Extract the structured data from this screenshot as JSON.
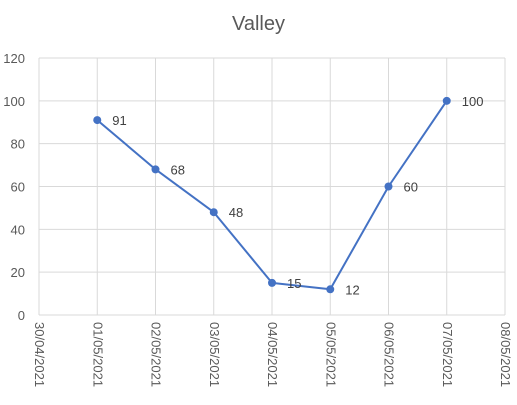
{
  "chart_data": {
    "type": "line",
    "title": "Valley",
    "xlabel": "",
    "ylabel": "",
    "x_ticks": [
      "30/04/2021",
      "01/05/2021",
      "02/05/2021",
      "03/05/2021",
      "04/05/2021",
      "05/05/2021",
      "06/05/2021",
      "07/05/2021",
      "08/05/2021"
    ],
    "x": [
      "01/05/2021",
      "02/05/2021",
      "03/05/2021",
      "04/05/2021",
      "05/05/2021",
      "06/05/2021",
      "07/05/2021"
    ],
    "values": [
      91,
      68,
      48,
      15,
      12,
      60,
      100
    ],
    "data_labels": [
      "91",
      "68",
      "48",
      "15",
      "12",
      "60",
      "100"
    ],
    "y_ticks": [
      "0",
      "20",
      "40",
      "60",
      "80",
      "100",
      "120"
    ],
    "ylim": [
      0,
      120
    ],
    "grid": true,
    "legend": "none",
    "colors": {
      "line": "#4472c4",
      "marker": "#4472c4",
      "grid": "#d9d9d9",
      "text": "#595959"
    }
  }
}
